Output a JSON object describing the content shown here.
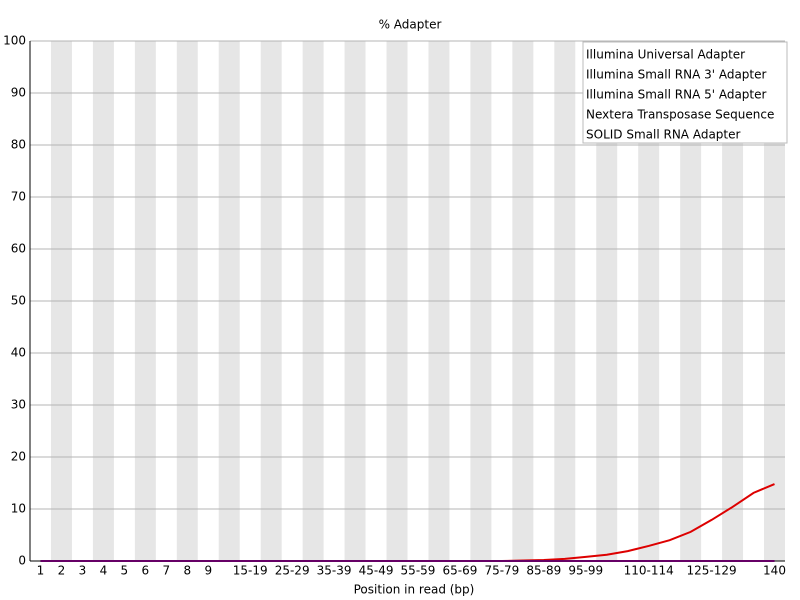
{
  "chart_data": {
    "type": "line",
    "title": "% Adapter",
    "x_label": "Position in read (bp)",
    "categories": [
      "1",
      "2",
      "3",
      "4",
      "5",
      "6",
      "7",
      "8",
      "9",
      null,
      "15-19",
      null,
      "25-29",
      null,
      "35-39",
      null,
      "45-49",
      null,
      "55-59",
      null,
      "65-69",
      null,
      "75-79",
      null,
      "85-89",
      null,
      "95-99",
      null,
      null,
      "110-114",
      null,
      null,
      "125-129",
      null,
      null,
      "140"
    ],
    "series": [
      {
        "name": "Illumina Universal Adapter",
        "color": "#dd0000",
        "values": [
          0,
          0,
          0,
          0,
          0,
          0,
          0,
          0,
          0,
          0,
          0,
          0,
          0,
          0,
          0,
          0,
          0,
          0,
          0,
          0,
          0,
          0,
          0,
          0.1,
          0.2,
          0.4,
          0.8,
          1.2,
          1.9,
          2.9,
          4.0,
          5.6,
          7.9,
          10.4,
          13.1,
          14.8
        ]
      },
      {
        "name": "Illumina Small RNA 3' Adapter",
        "color": "#000099",
        "values": [
          0,
          0,
          0,
          0,
          0,
          0,
          0,
          0,
          0,
          0,
          0,
          0,
          0,
          0,
          0,
          0,
          0,
          0,
          0,
          0,
          0,
          0,
          0,
          0,
          0,
          0,
          0,
          0,
          0,
          0,
          0,
          0,
          0,
          0,
          0,
          0
        ]
      },
      {
        "name": "Illumina Small RNA 5' Adapter",
        "color": "#00bb00",
        "values": [
          0,
          0,
          0,
          0,
          0,
          0,
          0,
          0,
          0,
          0,
          0,
          0,
          0,
          0,
          0,
          0,
          0,
          0,
          0,
          0,
          0,
          0,
          0,
          0,
          0,
          0,
          0,
          0,
          0,
          0,
          0,
          0,
          0,
          0,
          0,
          0
        ]
      },
      {
        "name": "Nextera Transposase Sequence",
        "color": "#444444",
        "values": [
          0,
          0,
          0,
          0,
          0,
          0,
          0,
          0,
          0,
          0,
          0,
          0,
          0,
          0,
          0,
          0,
          0,
          0,
          0,
          0,
          0,
          0,
          0,
          0,
          0,
          0,
          0,
          0,
          0,
          0,
          0,
          0,
          0,
          0,
          0,
          0
        ]
      },
      {
        "name": "SOLID Small RNA Adapter",
        "color": "#cc00cc",
        "values": [
          0,
          0,
          0,
          0,
          0,
          0,
          0,
          0,
          0,
          0,
          0,
          0,
          0,
          0,
          0,
          0,
          0,
          0,
          0,
          0,
          0,
          0,
          0,
          0,
          0,
          0,
          0,
          0,
          0,
          0,
          0,
          0,
          0,
          0,
          0,
          0
        ]
      }
    ],
    "ylim": [
      0,
      100
    ],
    "yticks": [
      0,
      10,
      20,
      30,
      40,
      50,
      60,
      70,
      80,
      90,
      100
    ],
    "grid": true,
    "legend": "top-right"
  }
}
